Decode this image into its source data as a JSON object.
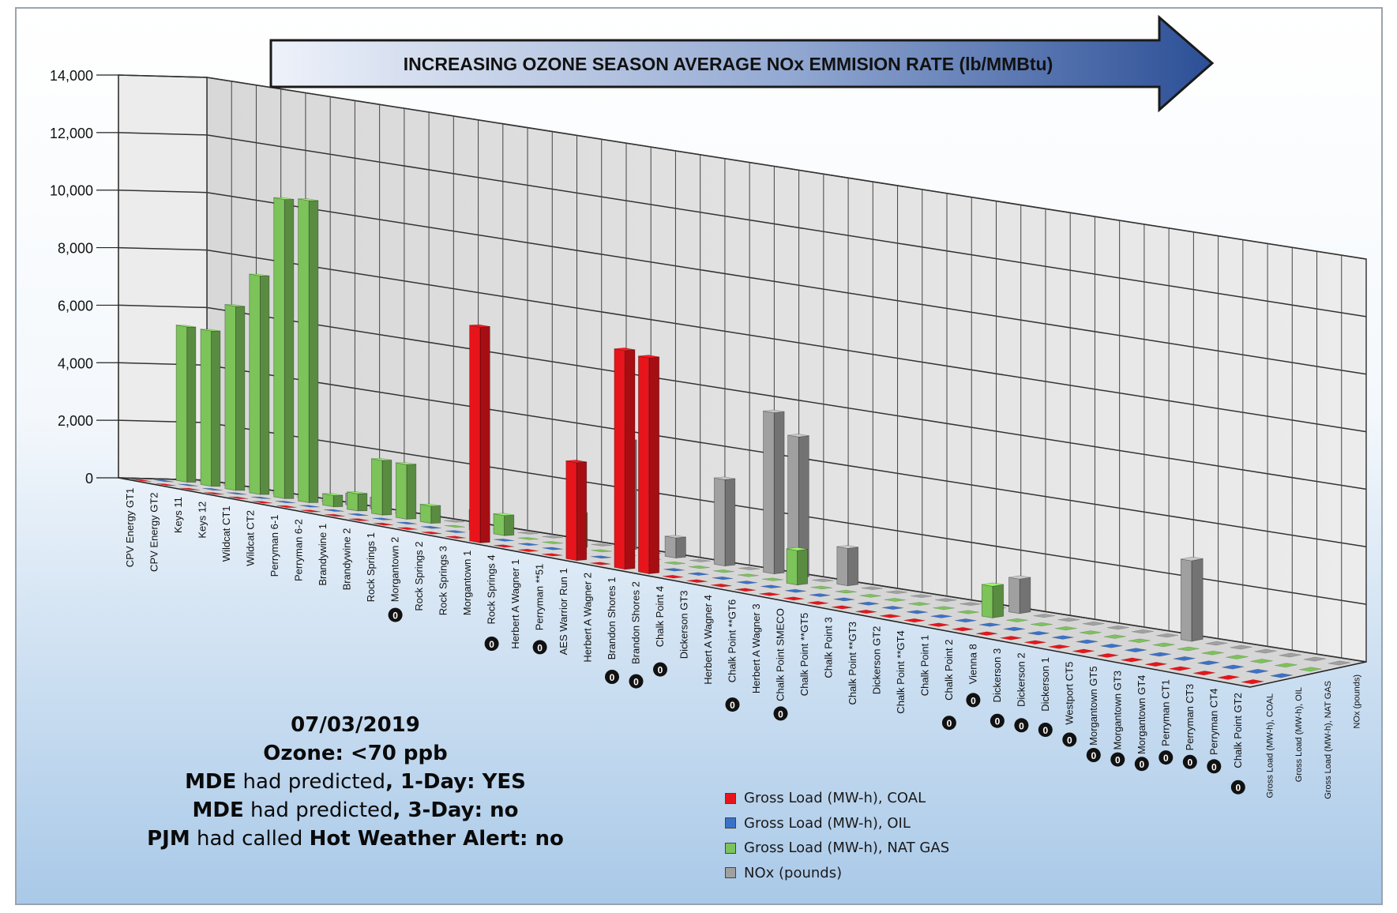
{
  "banner": {
    "text": "INCREASING OZONE SEASON AVERAGE NOx EMMISION RATE (lb/MMBtu)"
  },
  "info": {
    "date": "07/03/2019",
    "ozone": "Ozone:  <70 ppb",
    "line3_a": "MDE",
    "line3_b": " had predicted",
    "line3_c": ", 1-Day: YES",
    "line4_a": "MDE",
    "line4_b": " had predicted",
    "line4_c": ", 3-Day: no",
    "line5_a": "PJM",
    "line5_b": " had called ",
    "line5_c": "Hot Weather Alert: no"
  },
  "legend": [
    {
      "label": "Gross Load (MW-h), COAL",
      "color": "#e8141b"
    },
    {
      "label": "Gross Load (MW-h), OIL",
      "color": "#3b72c8"
    },
    {
      "label": "Gross Load (MW-h), NAT GAS",
      "color": "#7cc35a"
    },
    {
      "label": "NOx (pounds)",
      "color": "#a0a0a0"
    }
  ],
  "chart_data": {
    "type": "bar",
    "title": "",
    "ylim": [
      0,
      14000
    ],
    "yticks": [
      "0",
      "2,000",
      "4,000",
      "6,000",
      "8,000",
      "10,000",
      "12,000",
      "14,000"
    ],
    "grid": true,
    "legend_position": "bottom-center",
    "series_axis_labels": [
      "Gross Load (MW-h), COAL",
      "Gross Load (MW-h), OIL",
      "Gross Load (MW-h), NAT GAS",
      "NOx (pounds)"
    ],
    "categories": [
      {
        "label": "CPV Energy GT1",
        "zero": false
      },
      {
        "label": "CPV Energy GT2",
        "zero": false
      },
      {
        "label": "Keys 11",
        "zero": false
      },
      {
        "label": "Keys 12",
        "zero": false
      },
      {
        "label": "Wildcat CT1",
        "zero": false
      },
      {
        "label": "Wildcat CT2",
        "zero": false
      },
      {
        "label": "Perryman 6-1",
        "zero": false
      },
      {
        "label": "Perryman 6-2",
        "zero": false
      },
      {
        "label": "Brandywine 1",
        "zero": false
      },
      {
        "label": "Brandywine 2",
        "zero": false
      },
      {
        "label": "Rock Springs 1",
        "zero": false
      },
      {
        "label": "Morgantown 2",
        "zero": true
      },
      {
        "label": "Rock Springs 2",
        "zero": false
      },
      {
        "label": "Rock Springs 3",
        "zero": false
      },
      {
        "label": "Morgantown 1",
        "zero": false
      },
      {
        "label": "Rock Springs 4",
        "zero": true
      },
      {
        "label": "Herbert A Wagner 1",
        "zero": false
      },
      {
        "label": "Perryman **51",
        "zero": true
      },
      {
        "label": "AES Warrior Run 1",
        "zero": false
      },
      {
        "label": "Herbert A Wagner 2",
        "zero": false
      },
      {
        "label": "Brandon Shores 1",
        "zero": true
      },
      {
        "label": "Brandon Shores 2",
        "zero": true
      },
      {
        "label": "Chalk Point 4",
        "zero": true
      },
      {
        "label": "Dickerson GT3",
        "zero": false
      },
      {
        "label": "Herbert A Wagner 4",
        "zero": false
      },
      {
        "label": "Chalk Point **GT6",
        "zero": true
      },
      {
        "label": "Herbert A Wagner 3",
        "zero": false
      },
      {
        "label": "Chalk Point SMECO",
        "zero": true
      },
      {
        "label": "Chalk Point **GT5",
        "zero": false
      },
      {
        "label": "Chalk Point 3",
        "zero": false
      },
      {
        "label": "Chalk Point **GT3",
        "zero": false
      },
      {
        "label": "Dickerson GT2",
        "zero": false
      },
      {
        "label": "Chalk Point **GT4",
        "zero": false
      },
      {
        "label": "Chalk Point 1",
        "zero": false
      },
      {
        "label": "Chalk Point 2",
        "zero": true
      },
      {
        "label": "Vienna 8",
        "zero": true
      },
      {
        "label": "Dickerson 3",
        "zero": true
      },
      {
        "label": "Dickerson 2",
        "zero": true
      },
      {
        "label": "Dickerson 1",
        "zero": true
      },
      {
        "label": "Westport CT5",
        "zero": true
      },
      {
        "label": "Morgantown GT5",
        "zero": true
      },
      {
        "label": "Morgantown GT3",
        "zero": true
      },
      {
        "label": "Morgantown GT4",
        "zero": true
      },
      {
        "label": "Perryman CT1",
        "zero": true
      },
      {
        "label": "Perryman CT3",
        "zero": true
      },
      {
        "label": "Perryman CT4",
        "zero": true
      },
      {
        "label": "Chalk Point GT2",
        "zero": true
      }
    ],
    "series": [
      {
        "name": "Gross Load (MW-h), COAL",
        "values": [
          0,
          0,
          0,
          0,
          0,
          0,
          0,
          0,
          0,
          0,
          0,
          0,
          0,
          0,
          7500,
          0,
          0,
          0,
          3400,
          0,
          7600,
          7500,
          0,
          0,
          0,
          0,
          0,
          0,
          0,
          0,
          0,
          0,
          0,
          0,
          0,
          0,
          0,
          0,
          0,
          0,
          0,
          0,
          0,
          0,
          0,
          0,
          0
        ]
      },
      {
        "name": "Gross Load (MW-h), OIL",
        "values": [
          0,
          0,
          0,
          0,
          0,
          0,
          0,
          0,
          0,
          0,
          0,
          0,
          0,
          0,
          0,
          0,
          0,
          0,
          0,
          0,
          0,
          0,
          0,
          0,
          0,
          0,
          0,
          0,
          0,
          0,
          0,
          0,
          0,
          0,
          0,
          0,
          0,
          0,
          0,
          0,
          0,
          0,
          0,
          0,
          0,
          0,
          0
        ]
      },
      {
        "name": "Gross Load (MW-h), NAT GAS",
        "values": [
          5400,
          5400,
          6400,
          7600,
          10400,
          10500,
          400,
          600,
          1900,
          1900,
          600,
          0,
          700,
          700,
          0,
          0,
          1200,
          0,
          0,
          0,
          0,
          0,
          0,
          0,
          0,
          1200,
          0,
          0,
          0,
          0,
          0,
          0,
          0,
          1100,
          0,
          0,
          0,
          0,
          0,
          0,
          0,
          0,
          0,
          0,
          0,
          0,
          0
        ]
      },
      {
        "name": "NOx (pounds)",
        "values": [
          0,
          0,
          0,
          0,
          0,
          0,
          400,
          400,
          0,
          0,
          0,
          0,
          0,
          0,
          0,
          0,
          0,
          3800,
          0,
          700,
          0,
          3000,
          0,
          5600,
          4900,
          0,
          1300,
          0,
          0,
          0,
          0,
          0,
          0,
          1200,
          0,
          0,
          0,
          0,
          0,
          0,
          2800,
          0,
          0,
          0,
          0,
          0,
          0
        ]
      }
    ]
  }
}
